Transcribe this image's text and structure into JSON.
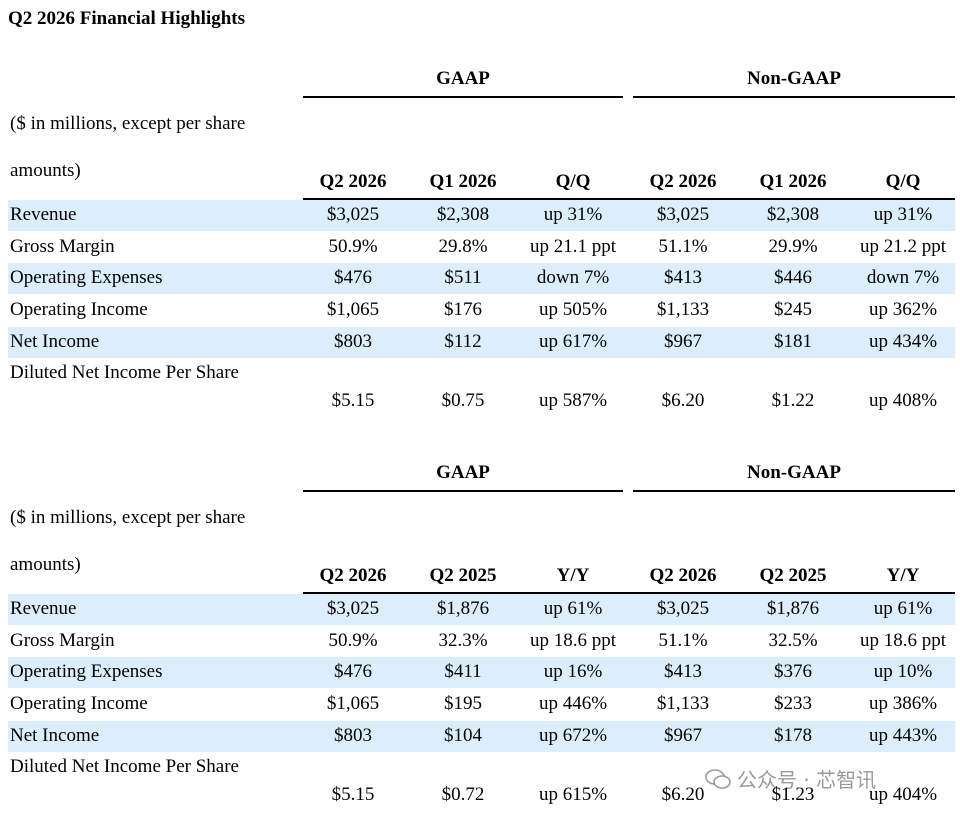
{
  "title": "Q2 2026 Financial Highlights",
  "tables": [
    {
      "groups": [
        "GAAP",
        "Non-GAAP"
      ],
      "note": "($ in millions, except per share amounts)",
      "columns": [
        "Q2 2026",
        "Q1 2026",
        "Q/Q",
        "Q2 2026",
        "Q1 2026",
        "Q/Q"
      ],
      "rows": [
        [
          "Revenue",
          "$3,025",
          "$2,308",
          "up 31%",
          "$3,025",
          "$2,308",
          "up 31%"
        ],
        [
          "Gross Margin",
          "50.9%",
          "29.8%",
          "up 21.1 ppt",
          "51.1%",
          "29.9%",
          "up 21.2 ppt"
        ],
        [
          "Operating Expenses",
          "$476",
          "$511",
          "down 7%",
          "$413",
          "$446",
          "down 7%"
        ],
        [
          "Operating Income",
          "$1,065",
          "$176",
          "up 505%",
          "$1,133",
          "$245",
          "up 362%"
        ],
        [
          "Net Income",
          "$803",
          "$112",
          "up 617%",
          "$967",
          "$181",
          "up 434%"
        ],
        [
          "Diluted Net Income Per Share",
          "$5.15",
          "$0.75",
          "up 587%",
          "$6.20",
          "$1.22",
          "up 408%"
        ]
      ]
    },
    {
      "groups": [
        "GAAP",
        "Non-GAAP"
      ],
      "note": "($ in millions, except per share amounts)",
      "columns": [
        "Q2 2026",
        "Q2 2025",
        "Y/Y",
        "Q2 2026",
        "Q2 2025",
        "Y/Y"
      ],
      "rows": [
        [
          "Revenue",
          "$3,025",
          "$1,876",
          "up 61%",
          "$3,025",
          "$1,876",
          "up 61%"
        ],
        [
          "Gross Margin",
          "50.9%",
          "32.3%",
          "up 18.6 ppt",
          "51.1%",
          "32.5%",
          "up 18.6 ppt"
        ],
        [
          "Operating Expenses",
          "$476",
          "$411",
          "up 16%",
          "$413",
          "$376",
          "up 10%"
        ],
        [
          "Operating Income",
          "$1,065",
          "$195",
          "up 446%",
          "$1,133",
          "$233",
          "up 386%"
        ],
        [
          "Net Income",
          "$803",
          "$104",
          "up 672%",
          "$967",
          "$178",
          "up 443%"
        ],
        [
          "Diluted Net Income Per Share",
          "$5.15",
          "$0.72",
          "up 615%",
          "$6.20",
          "$1.23",
          "up 404%"
        ]
      ]
    }
  ],
  "watermark": "公众号 · 芯智讯"
}
